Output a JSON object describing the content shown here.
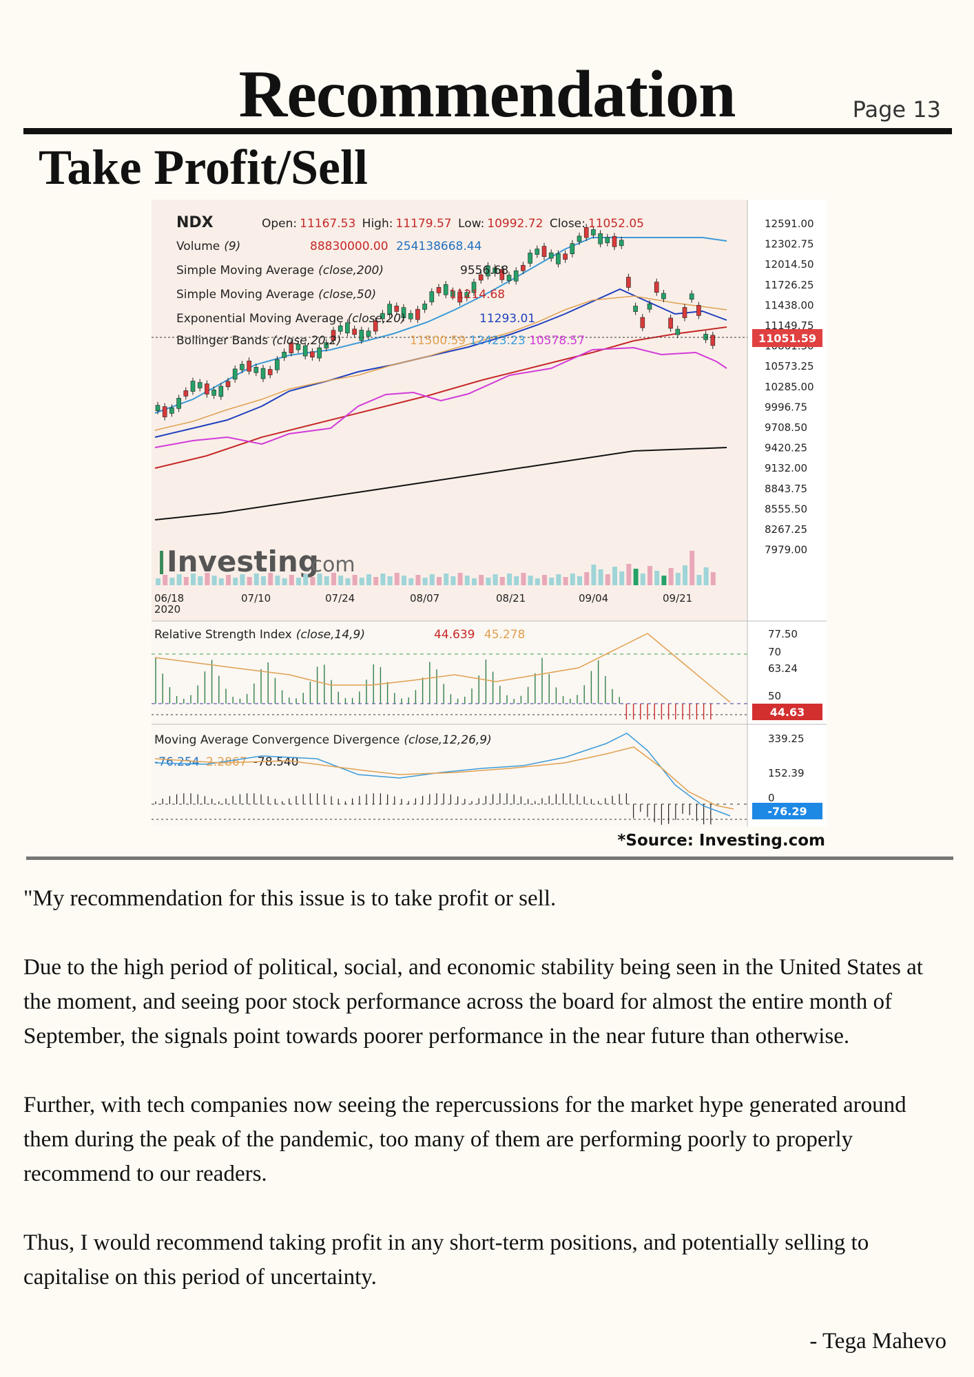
{
  "header": {
    "title": "Recommendation",
    "page": "Page 13",
    "subtitle": "Take Profit/Sell"
  },
  "chart_panel": {
    "symbol": "NDX",
    "ohlc": {
      "open_label": "Open:",
      "open": "11167.53",
      "high_label": "High:",
      "high": "11179.57",
      "low_label": "Low:",
      "low": "10992.72",
      "close_label": "Close:",
      "close": "11052.05"
    },
    "indicators": [
      {
        "name": "Volume",
        "params": "(9)",
        "values": [
          "88830000.00",
          "254138668.44"
        ]
      },
      {
        "name": "Simple Moving Average",
        "params": "(close,200)",
        "values": [
          "9556.68"
        ]
      },
      {
        "name": "Simple Moving Average",
        "params": "(close,50)",
        "values": [
          "11214.68"
        ]
      },
      {
        "name": "Exponential Moving Average",
        "params": "(close,20)",
        "values": [
          "11293.01"
        ]
      },
      {
        "name": "Bollinger Bands",
        "params": "(close,20,2)",
        "values": [
          "11500.59",
          "12423.23",
          "10578.57"
        ]
      }
    ],
    "price_axis": [
      "12591.00",
      "12302.75",
      "12014.50",
      "11726.25",
      "11438.00",
      "11149.75",
      "10861.50",
      "10573.25",
      "10285.00",
      "9996.75",
      "9708.50",
      "9420.25",
      "9132.00",
      "8843.75",
      "8555.50",
      "8267.25",
      "7979.00"
    ],
    "last_price": "11051.59",
    "date_axis": [
      "06/18",
      "07/10",
      "07/24",
      "08/07",
      "08/21",
      "09/04",
      "09/21"
    ],
    "date_year": "2020",
    "watermark": {
      "brand": "Investing",
      "suffix": ".com"
    },
    "rsi": {
      "label": "Relative Strength Index",
      "params": "(close,14,9)",
      "values": [
        "44.639",
        "45.278"
      ],
      "axis": [
        "77.50",
        "70",
        "63.24",
        "50"
      ],
      "last": "44.63"
    },
    "macd": {
      "label": "Moving Average Convergence Divergence",
      "params": "(close,12,26,9)",
      "values": [
        "-76.254",
        "2.2867",
        "-78.540"
      ],
      "axis": [
        "339.25",
        "152.39",
        "0"
      ],
      "last": "-76.29"
    },
    "colors": {
      "up": "#26a269",
      "down": "#d83a3a",
      "bb_upper": "#3a9ad9",
      "bb_lower": "#d23ad9",
      "sma200": "#111111",
      "sma50": "#c62828",
      "ema20": "#1f3fbf",
      "bb_mid": "#e0a050"
    }
  },
  "chart_data": {
    "type": "line",
    "title": "NDX",
    "x": [
      "06/18",
      "07/10",
      "07/24",
      "08/07",
      "08/21",
      "09/04",
      "09/21"
    ],
    "series": [
      {
        "name": "Simple Moving Average (close,200)",
        "values": [
          8400,
          8690,
          8880,
          9080,
          9280,
          9430,
          9556.68
        ]
      },
      {
        "name": "Simple Moving Average (close,50)",
        "values": [
          9300,
          9750,
          10050,
          10400,
          10750,
          11050,
          11214.68
        ]
      },
      {
        "name": "Exponential Moving Average (close,20)",
        "values": [
          9800,
          10300,
          10500,
          10850,
          11250,
          11800,
          11293.01
        ]
      }
    ],
    "ylim": [
      7979.0,
      12591.0
    ]
  },
  "source_note": "*Source: Investing.com",
  "article": {
    "paragraphs": [
      "\"My recommendation for this issue is to take profit or sell.",
      "Due to the high period of political, social, and economic stability being seen in the United States at the moment, and seeing poor stock performance across the board for almost the entire month of September, the signals point towards poorer performance in the near future than otherwise.",
      "Further, with tech companies now seeing the repercussions for the market hype generated around them during the peak of the pandemic, too many of them are performing poorly to properly recommend to our readers.",
      "Thus, I would recommend taking profit in any short-term positions, and potentially selling to capitalise on this period of uncertainty."
    ],
    "signature": "- Tega Mahevo"
  }
}
